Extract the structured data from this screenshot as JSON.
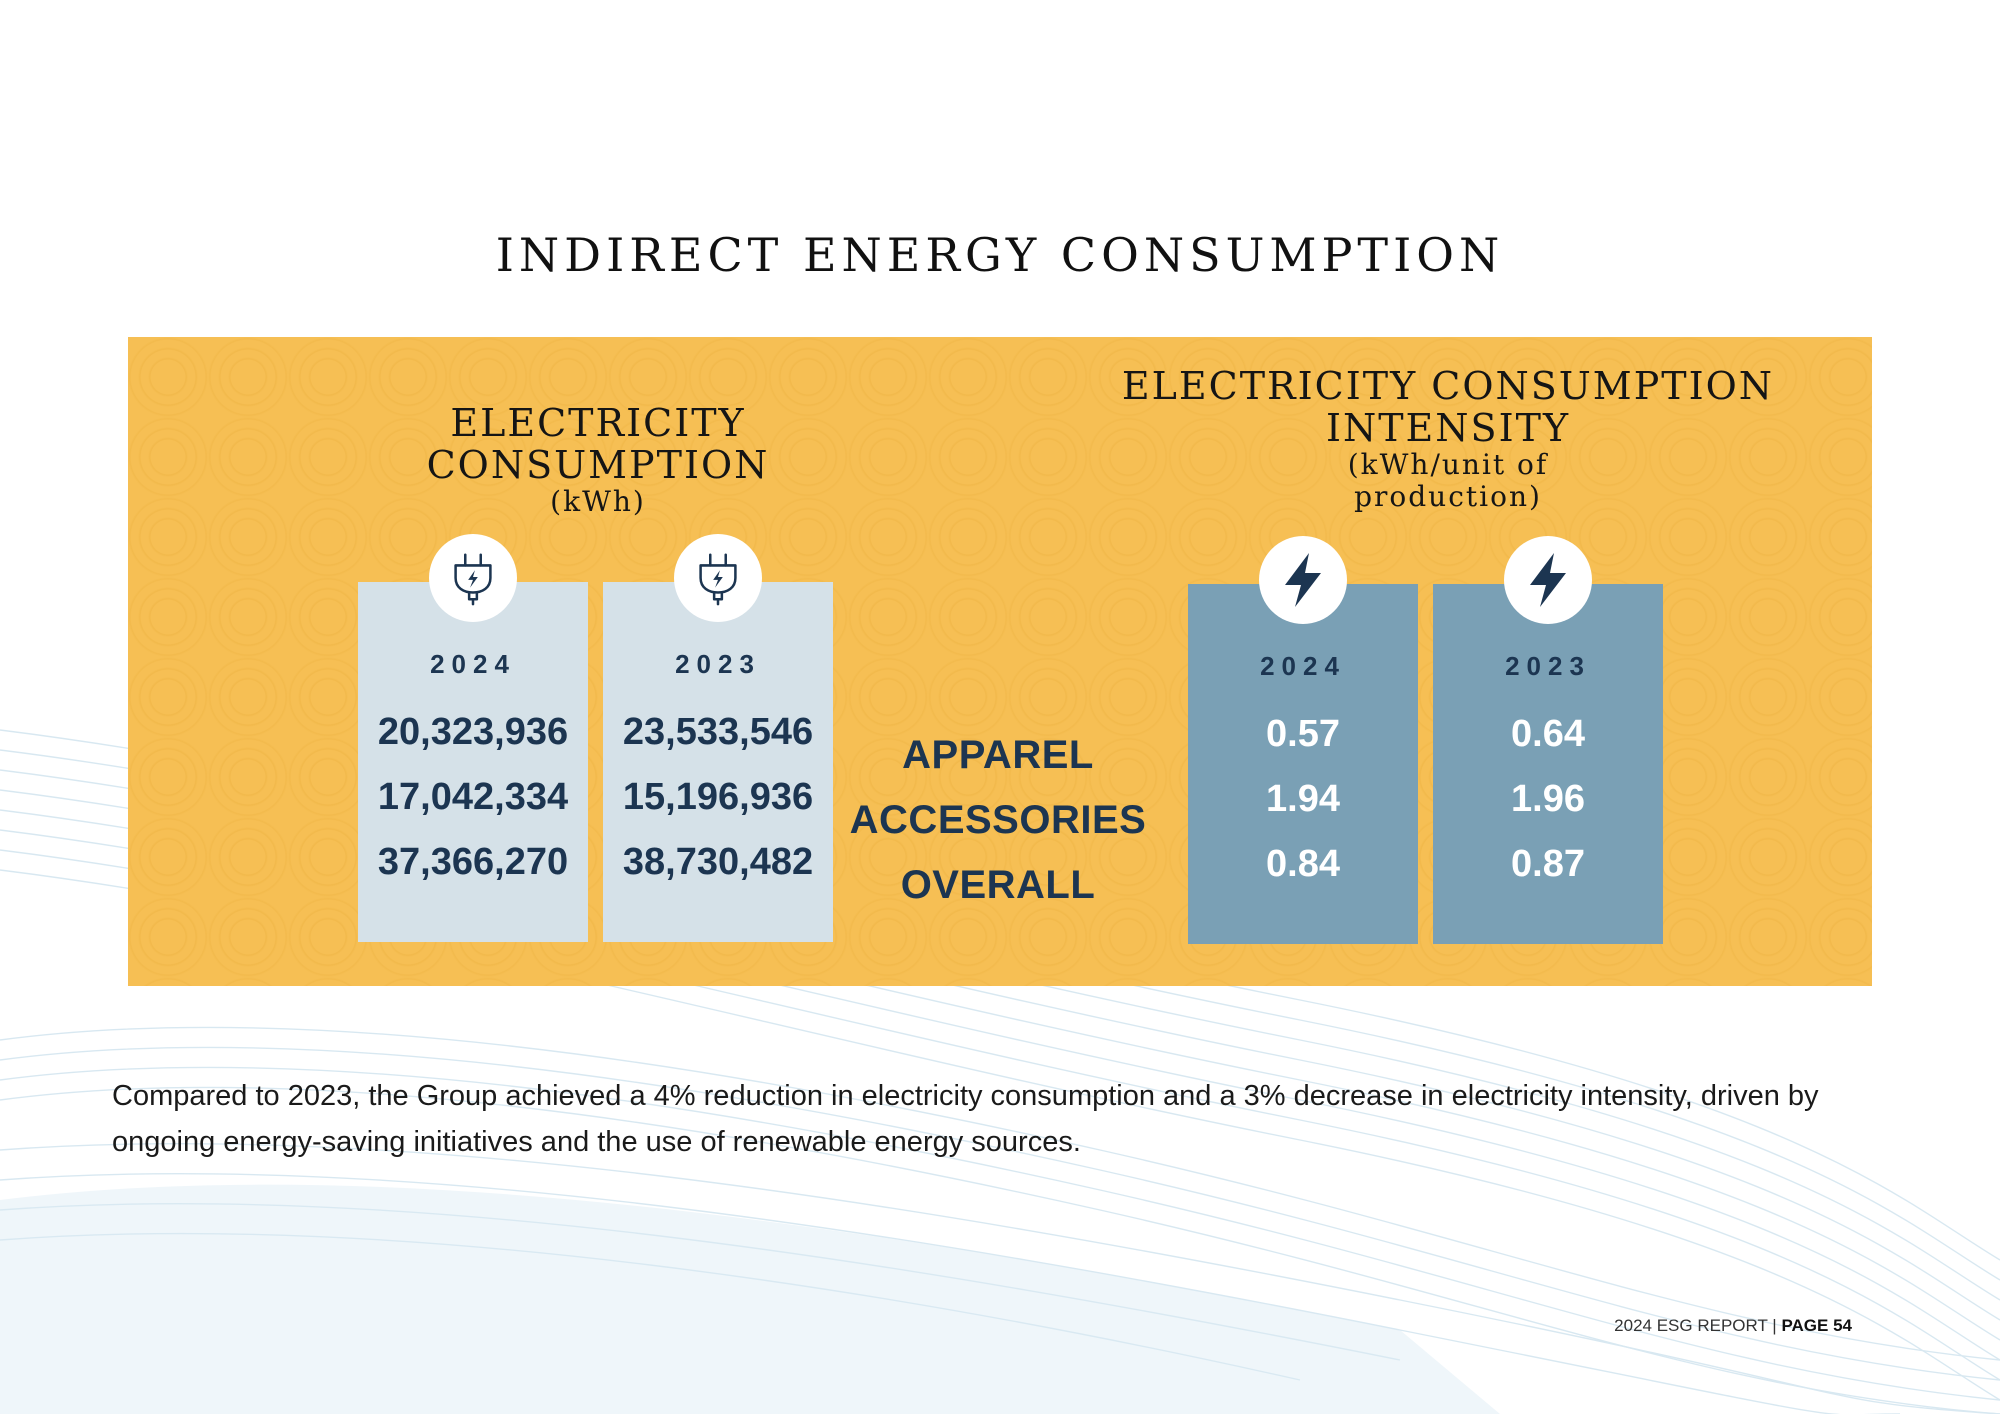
{
  "title": "INDIRECT ENERGY CONSUMPTION",
  "left_section": {
    "heading_line1": "ELECTRICITY",
    "heading_line2": "CONSUMPTION",
    "unit": "(kWh)",
    "columns": [
      {
        "year": "2024",
        "values": [
          "20,323,936",
          "17,042,334",
          "37,366,270"
        ]
      },
      {
        "year": "2023",
        "values": [
          "23,533,546",
          "15,196,936",
          "38,730,482"
        ]
      }
    ]
  },
  "row_labels": [
    "APPAREL",
    "ACCESSORIES",
    "OVERALL"
  ],
  "right_section": {
    "heading_line1": "ELECTRICITY CONSUMPTION",
    "heading_line2": "INTENSITY",
    "unit_line1": "(kWh/unit of",
    "unit_line2": "production)",
    "columns": [
      {
        "year": "2024",
        "values": [
          "0.57",
          "1.94",
          "0.84"
        ]
      },
      {
        "year": "2023",
        "values": [
          "0.64",
          "1.96",
          "0.87"
        ]
      }
    ]
  },
  "body_text": "Compared to 2023, the Group achieved a 4% reduction in electricity consumption and a 3% decrease in electricity intensity, driven by ongoing energy-saving initiatives and the use of renewable energy sources.",
  "footer": {
    "report": "2024 ESG REPORT",
    "separator": " | ",
    "page": "PAGE 54"
  },
  "colors": {
    "panel": "#f6bf54",
    "light_col": "#d5e1e8",
    "dark_col": "#7aa0b5",
    "navy": "#1c3551"
  },
  "icons": [
    "plug-icon",
    "lightning-bolt-icon"
  ]
}
